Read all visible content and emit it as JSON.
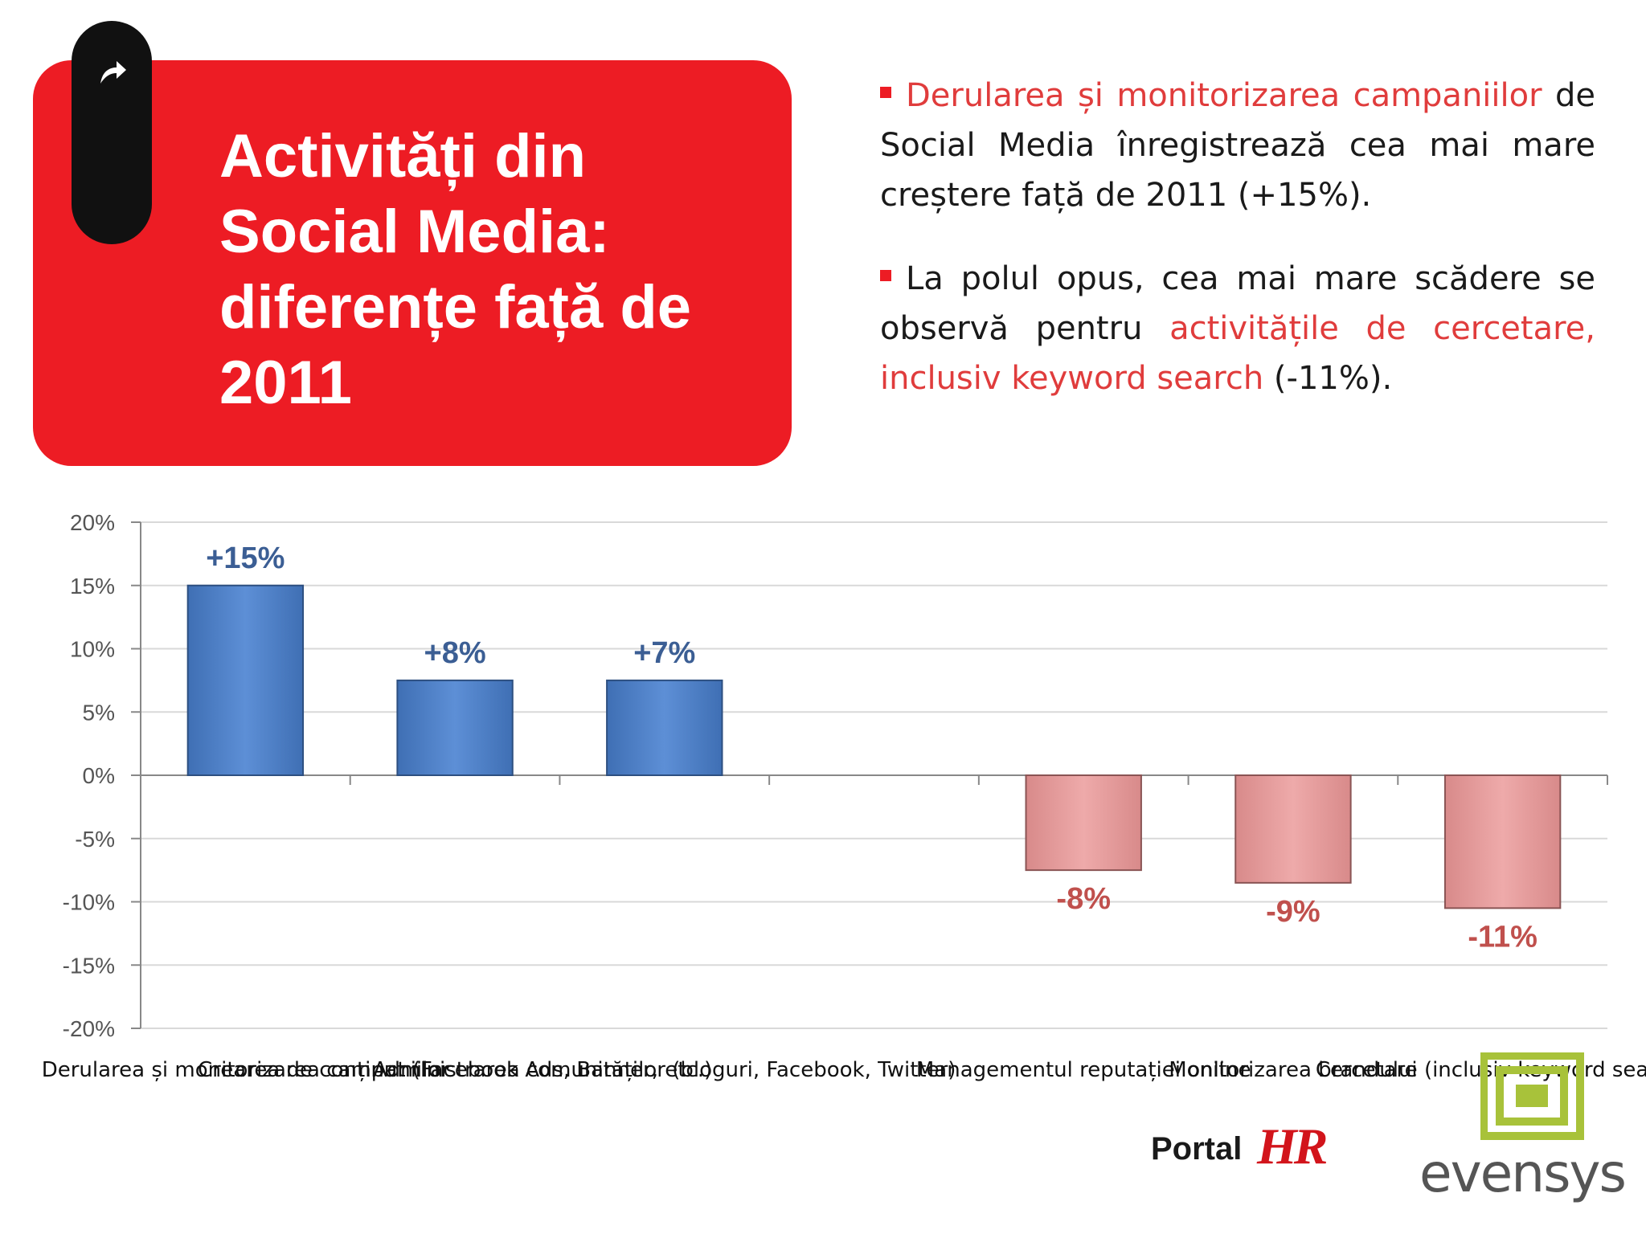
{
  "slide": {
    "title_lines": [
      "Activități din",
      "Social Media:",
      "diferențe față de",
      "2011"
    ],
    "colors": {
      "accent": "#ed1c24",
      "positive_bar": "#5a8ad0",
      "negative_bar": "#e6a0a0",
      "positive_label": "#3b5e94",
      "negative_label": "#c0504d"
    },
    "icons": [
      "arrow-share-icon",
      "bullet-square-icon"
    ]
  },
  "bullets": [
    {
      "highlight": "Derularea și monitorizarea campaniilor",
      "rest": " de Social Media înregistrează cea mai mare creștere față de 2011 (+15%)."
    },
    {
      "lead": "La polul opus, cea mai mare scădere se observă pentru ",
      "highlight": "activitățile de cercetare, inclusiv keyword search",
      "rest": " (-11%)."
    }
  ],
  "chart_data": {
    "type": "bar",
    "categories": [
      "Derularea și monitorizarea campaniilor",
      "Crearea de conținut (Facebook Ads, Banner, etc.)",
      "Administrarea comunităților (bloguri, Facebook, Twitter)",
      "",
      "Managementul reputației online",
      "Monitorizarea brandului",
      "Cercetare (inclusiv keyword search)"
    ],
    "values": [
      15,
      7.5,
      7.5,
      0,
      -7.5,
      -8.5,
      -10.5
    ],
    "data_labels": [
      "+15%",
      "+8%",
      "+7%",
      "",
      "-8%",
      "-9%",
      "-11%"
    ],
    "y_ticks": [
      "20%",
      "15%",
      "10%",
      "5%",
      "0%",
      "-5%",
      "-10%",
      "-15%",
      "-20%"
    ],
    "ylim": [
      -20,
      20
    ],
    "grid": true,
    "title": "",
    "xlabel": "",
    "ylabel": ""
  },
  "logos": {
    "portal_word": "Portal",
    "portal_mark": "HR",
    "evensys_word": "evensys"
  }
}
